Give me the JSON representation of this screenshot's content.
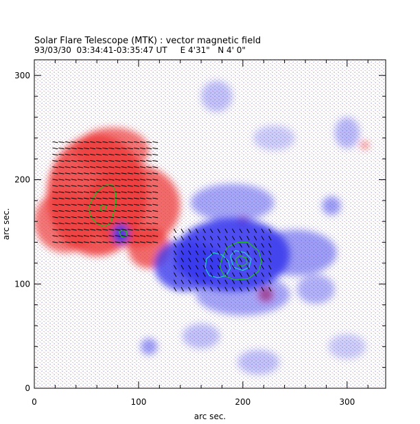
{
  "chart_data": {
    "type": "heatmap",
    "title": "Solar Flare Telescope (MTK) : vector magnetic field",
    "subtitle": "93/03/30  03:34:41-03:35:47 UT     E 4'31\"   N 4' 0\"",
    "xlabel": "arc sec.",
    "ylabel": "arc sec.",
    "xlim": [
      0,
      337
    ],
    "ylim": [
      0,
      315
    ],
    "xticks": [
      0,
      100,
      200,
      300
    ],
    "yticks": [
      0,
      100,
      200,
      300
    ],
    "grid": false,
    "colors": {
      "positive": "#ee3b3b",
      "negative": "#3b3bee",
      "contour_green": "#22bb22",
      "contour_cyan": "#22cccc",
      "vector": "#000000"
    },
    "series": [
      {
        "polarity": "positive",
        "regions": [
          {
            "cx": 60,
            "cy": 185,
            "rx": 48,
            "ry": 58,
            "strength": 0.85
          },
          {
            "cx": 95,
            "cy": 175,
            "rx": 45,
            "ry": 40,
            "strength": 0.75
          },
          {
            "cx": 30,
            "cy": 160,
            "rx": 30,
            "ry": 30,
            "strength": 0.7
          },
          {
            "cx": 75,
            "cy": 228,
            "rx": 35,
            "ry": 22,
            "strength": 0.7
          },
          {
            "cx": 110,
            "cy": 135,
            "rx": 20,
            "ry": 20,
            "strength": 0.75
          },
          {
            "cx": 222,
            "cy": 90,
            "rx": 7,
            "ry": 7,
            "strength": 0.9
          },
          {
            "cx": 200,
            "cy": 160,
            "rx": 6,
            "ry": 5,
            "strength": 0.6
          },
          {
            "cx": 317,
            "cy": 233,
            "rx": 4,
            "ry": 4,
            "strength": 0.6
          }
        ]
      },
      {
        "polarity": "negative",
        "regions": [
          {
            "cx": 190,
            "cy": 128,
            "rx": 55,
            "ry": 35,
            "strength": 0.9
          },
          {
            "cx": 145,
            "cy": 118,
            "rx": 30,
            "ry": 25,
            "strength": 0.8
          },
          {
            "cx": 250,
            "cy": 130,
            "rx": 40,
            "ry": 22,
            "strength": 0.5
          },
          {
            "cx": 200,
            "cy": 90,
            "rx": 45,
            "ry": 20,
            "strength": 0.45
          },
          {
            "cx": 190,
            "cy": 178,
            "rx": 40,
            "ry": 18,
            "strength": 0.45
          },
          {
            "cx": 83,
            "cy": 148,
            "rx": 8,
            "ry": 10,
            "strength": 0.9
          },
          {
            "cx": 300,
            "cy": 245,
            "rx": 12,
            "ry": 15,
            "strength": 0.35
          },
          {
            "cx": 285,
            "cy": 175,
            "rx": 9,
            "ry": 9,
            "strength": 0.5
          },
          {
            "cx": 270,
            "cy": 95,
            "rx": 18,
            "ry": 14,
            "strength": 0.4
          },
          {
            "cx": 110,
            "cy": 40,
            "rx": 8,
            "ry": 8,
            "strength": 0.5
          },
          {
            "cx": 160,
            "cy": 50,
            "rx": 18,
            "ry": 12,
            "strength": 0.3
          },
          {
            "cx": 215,
            "cy": 25,
            "rx": 20,
            "ry": 12,
            "strength": 0.3
          },
          {
            "cx": 300,
            "cy": 40,
            "rx": 18,
            "ry": 12,
            "strength": 0.25
          },
          {
            "cx": 175,
            "cy": 280,
            "rx": 15,
            "ry": 15,
            "strength": 0.3
          },
          {
            "cx": 230,
            "cy": 240,
            "rx": 20,
            "ry": 12,
            "strength": 0.25
          },
          {
            "cx": 160,
            "cy": 120,
            "rx": 25,
            "ry": 15,
            "strength": 0.9
          }
        ]
      }
    ],
    "contours": [
      {
        "color": "green",
        "x": [
          55,
          60,
          68,
          75,
          78,
          78,
          75,
          73,
          67,
          60,
          55,
          52,
          55
        ],
        "y": [
          180,
          188,
          195,
          195,
          188,
          175,
          165,
          158,
          155,
          158,
          163,
          172,
          180
        ]
      },
      {
        "color": "green",
        "x": [
          63,
          65,
          68,
          69,
          67,
          64,
          63
        ],
        "y": [
          173,
          176,
          176,
          173,
          170,
          170,
          173
        ]
      },
      {
        "color": "green",
        "x": [
          81,
          85,
          89,
          88,
          84,
          81
        ],
        "y": [
          150,
          152,
          150,
          146,
          145,
          150
        ]
      },
      {
        "color": "green",
        "x": [
          180,
          185,
          195,
          205,
          215,
          218,
          215,
          205,
          192,
          182,
          178,
          180
        ],
        "y": [
          125,
          135,
          140,
          140,
          132,
          122,
          112,
          105,
          104,
          108,
          116,
          125
        ]
      },
      {
        "color": "cyan",
        "x": [
          165,
          172,
          180,
          186,
          188,
          184,
          176,
          168,
          164,
          165
        ],
        "y": [
          124,
          130,
          128,
          122,
          115,
          108,
          106,
          108,
          115,
          124
        ]
      },
      {
        "color": "cyan",
        "x": [
          188,
          193,
          202,
          208,
          206,
          200,
          191,
          188
        ],
        "y": [
          127,
          132,
          130,
          124,
          116,
          113,
          116,
          127
        ]
      },
      {
        "color": "green",
        "x": [
          193,
          197,
          203,
          204,
          200,
          195,
          193
        ],
        "y": [
          124,
          127,
          125,
          120,
          117,
          118,
          124
        ]
      }
    ],
    "vectors": [
      {
        "x0": 20,
        "x1": 120,
        "y0": 140,
        "y1": 240,
        "step": 6,
        "angle": -10,
        "len": 8
      },
      {
        "x0": 135,
        "x1": 230,
        "y0": 95,
        "y1": 155,
        "step": 7,
        "angle": -60,
        "len": 7
      }
    ]
  }
}
